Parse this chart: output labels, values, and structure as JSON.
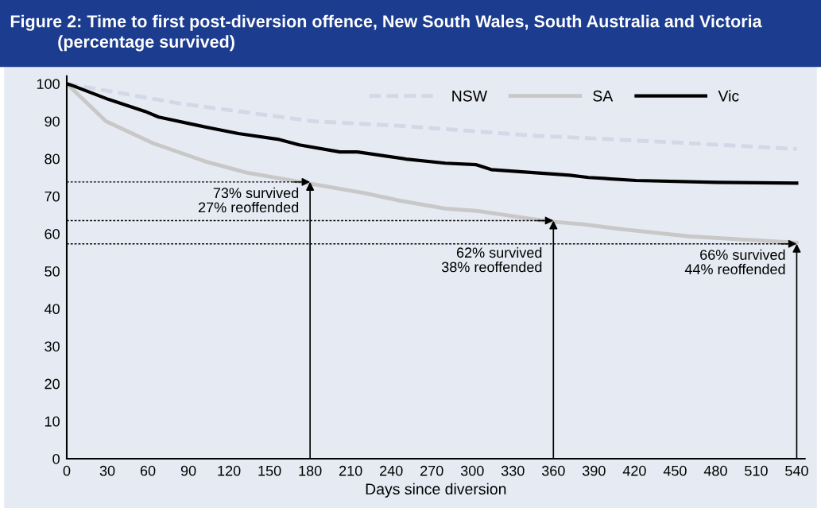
{
  "chart_data": {
    "type": "line",
    "title": "Figure 2: Time to first post-diversion offence, New South Wales, South Australia and Victoria\n          (percentage survived)",
    "xlabel": "Days since diversion",
    "xlim": [
      0,
      546
    ],
    "xticks": [
      0,
      30,
      60,
      90,
      120,
      150,
      180,
      210,
      240,
      270,
      300,
      330,
      360,
      390,
      420,
      450,
      480,
      510,
      540
    ],
    "ylim": [
      0,
      102
    ],
    "yticks": [
      0,
      10,
      20,
      30,
      40,
      50,
      60,
      70,
      80,
      90,
      100
    ],
    "grid": false,
    "legend": "top right",
    "series": [
      {
        "name": "NSW",
        "color": "#d3d8e8",
        "line_style": "dashed",
        "x": [
          0,
          84,
          182,
          245,
          280,
          343,
          441,
          540
        ],
        "values": [
          100,
          94.7,
          90,
          88.8,
          87.9,
          86.2,
          84.5,
          82.6
        ]
      },
      {
        "name": "SA",
        "color": "#c8c8c8",
        "line_style": "solid",
        "x": [
          0,
          29,
          64,
          103,
          133,
          178,
          221,
          245,
          280,
          303,
          356,
          382,
          411,
          460,
          540
        ],
        "values": [
          100,
          90,
          84.1,
          79.2,
          76.3,
          73.5,
          70.8,
          68.9,
          66.7,
          66.1,
          63.3,
          62.5,
          61.2,
          59.3,
          57.6
        ]
      },
      {
        "name": "Vic",
        "color": "#000000",
        "line_style": "solid",
        "x": [
          0,
          5,
          31,
          58,
          68,
          98,
          127,
          156,
          172,
          202,
          215,
          251,
          280,
          303,
          314,
          372,
          386,
          421,
          480,
          540
        ],
        "values": [
          100,
          99.4,
          95.8,
          92.6,
          91.1,
          88.8,
          86.7,
          85.2,
          83.7,
          81.8,
          81.8,
          79.9,
          78.8,
          78.4,
          77.1,
          75.6,
          75,
          74.2,
          73.7,
          73.5
        ]
      }
    ],
    "ref_lines": [
      {
        "axis": "y",
        "value": 73.8,
        "color": "#000000",
        "line_style": "dotted"
      },
      {
        "axis": "y",
        "value": 63.5,
        "color": "#000000",
        "line_style": "dotted"
      },
      {
        "axis": "y",
        "value": 57.3,
        "color": "#000000",
        "line_style": "dotted"
      }
    ],
    "annotations": [
      {
        "text": "73% survived\n27% reoffended",
        "x": 180,
        "y": 73.8
      },
      {
        "text": "62% survived\n38% reoffended",
        "x": 360,
        "y": 63.5
      },
      {
        "text": "66% survived\n44% reoffended",
        "x": 540,
        "y": 57.3
      }
    ]
  }
}
